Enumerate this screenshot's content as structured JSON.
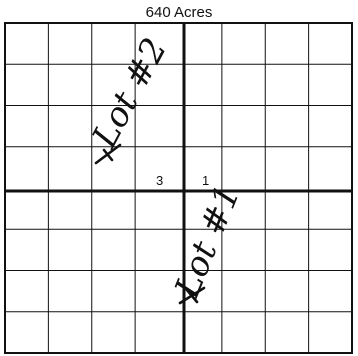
{
  "title": "640 Acres",
  "sections": {
    "left_number": "3",
    "right_number": "1"
  },
  "annotations": {
    "upper_left": "Lot #2",
    "lower_right": "Lot #1"
  },
  "grid": {
    "columns": 8,
    "rows": 8
  },
  "colors": {
    "ink": "#111111",
    "background": "#ffffff"
  }
}
